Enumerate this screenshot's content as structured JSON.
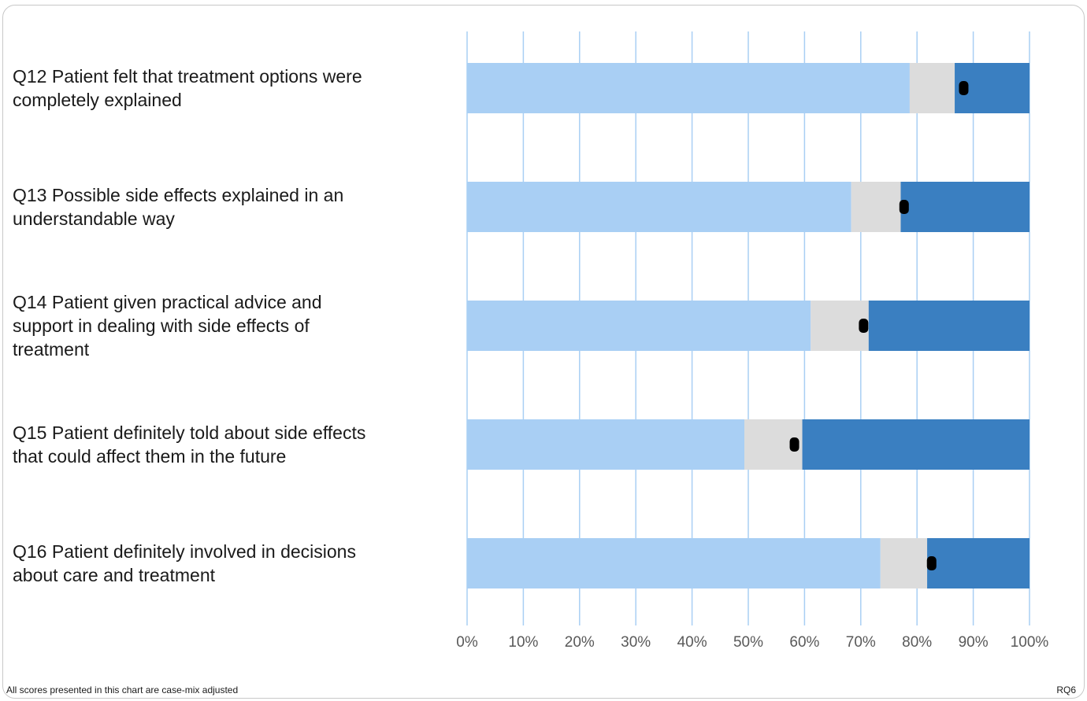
{
  "chart_data": {
    "type": "bar",
    "orientation": "horizontal",
    "stacked": true,
    "categories": [
      "Q12 Patient felt that treatment options were completely explained",
      "Q13 Possible side effects explained in an understandable way",
      "Q14 Patient given practical advice and support in dealing with side effects of treatment",
      "Q15 Patient definitely told about side effects that could affect them in the future",
      "Q16 Patient definitely involved in decisions about care and treatment"
    ],
    "category_lines": [
      [
        "Q12 Patient felt that treatment options were",
        "completely explained"
      ],
      [
        "Q13 Possible side effects explained in an",
        "understandable way"
      ],
      [
        "Q14 Patient given practical advice and",
        "support in dealing with side effects of",
        "treatment"
      ],
      [
        "Q15 Patient definitely told about side effects",
        "that could affect them in the future"
      ],
      [
        "Q16 Patient definitely involved in decisions",
        "about care and treatment"
      ]
    ],
    "series": [
      {
        "values": [
          78.7,
          68.3,
          61.1,
          49.3,
          73.5
        ],
        "color": "#a9cff4"
      },
      {
        "values": [
          8.0,
          8.8,
          10.3,
          10.3,
          8.3
        ],
        "color": "#dcdcdc"
      },
      {
        "values": [
          13.3,
          22.9,
          28.6,
          40.4,
          18.2
        ],
        "color": "#3a7fc1"
      }
    ],
    "markers": {
      "values": [
        88.3,
        77.7,
        70.5,
        58.2,
        82.6
      ],
      "color": "#000000"
    },
    "x_ticks": [
      "0%",
      "10%",
      "20%",
      "30%",
      "40%",
      "50%",
      "60%",
      "70%",
      "80%",
      "90%",
      "100%"
    ],
    "xlim": [
      0,
      100
    ],
    "grid": true,
    "gridline_color": "#a9cff4"
  },
  "footnote": "All scores presented in this chart are case-mix adjusted",
  "chart_code": "RQ6"
}
